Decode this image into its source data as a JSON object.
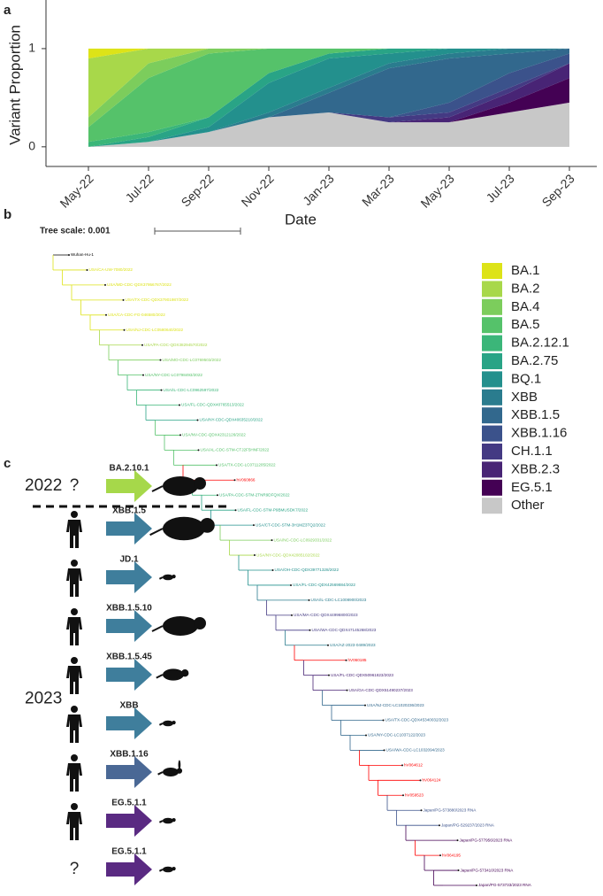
{
  "panel_labels": [
    "a",
    "b",
    "c"
  ],
  "chart_data": {
    "type": "area",
    "stacked": true,
    "y_label": "Variant Proportion",
    "x_label": "Date",
    "categories": [
      "May-22",
      "Jul-22",
      "Sep-22",
      "Nov-22",
      "Jan-23",
      "Mar-23",
      "May-23",
      "Jul-23",
      "Sep-23"
    ],
    "ylim": [
      -0.2,
      1.45
    ],
    "yticks": [
      0,
      1
    ],
    "series": [
      {
        "name": "BA.1",
        "color": "#dde318",
        "values": [
          0.1,
          0,
          0,
          0,
          0,
          0,
          0,
          0,
          0
        ]
      },
      {
        "name": "BA.2",
        "color": "#a8d84a",
        "values": [
          0.6,
          0.15,
          0,
          0,
          0,
          0,
          0,
          0,
          0
        ]
      },
      {
        "name": "BA.4",
        "color": "#7ccd5c",
        "values": [
          0.1,
          0.15,
          0.05,
          0,
          0,
          0,
          0,
          0,
          0
        ]
      },
      {
        "name": "BA.5",
        "color": "#55c26a",
        "values": [
          0.15,
          0.55,
          0.65,
          0.25,
          0.05,
          0,
          0,
          0,
          0
        ]
      },
      {
        "name": "BA.2.12.1",
        "color": "#3bb679",
        "values": [
          0.05,
          0.05,
          0,
          0,
          0,
          0,
          0,
          0,
          0
        ]
      },
      {
        "name": "BA.2.75",
        "color": "#29a486",
        "values": [
          0,
          0.05,
          0.1,
          0.1,
          0.05,
          0.05,
          0,
          0,
          0
        ]
      },
      {
        "name": "BQ.1",
        "color": "#23908d",
        "values": [
          0,
          0,
          0.05,
          0.3,
          0.3,
          0.1,
          0.05,
          0,
          0
        ]
      },
      {
        "name": "XBB",
        "color": "#2a7c8e",
        "values": [
          0,
          0,
          0,
          0.05,
          0.05,
          0.05,
          0.05,
          0.05,
          0
        ]
      },
      {
        "name": "XBB.1.5",
        "color": "#32688d",
        "values": [
          0,
          0,
          0,
          0,
          0.2,
          0.5,
          0.45,
          0.2,
          0.05
        ]
      },
      {
        "name": "XBB.1.16",
        "color": "#3b528b",
        "values": [
          0,
          0,
          0,
          0,
          0,
          0,
          0.1,
          0.15,
          0.1
        ]
      },
      {
        "name": "CH.1.1",
        "color": "#443a83",
        "values": [
          0,
          0,
          0,
          0,
          0,
          0.05,
          0.05,
          0.05,
          0
        ]
      },
      {
        "name": "XBB.2.3",
        "color": "#482475",
        "values": [
          0,
          0,
          0,
          0,
          0,
          0,
          0.05,
          0.1,
          0.15
        ]
      },
      {
        "name": "EG.5.1",
        "color": "#440154",
        "values": [
          0,
          0,
          0,
          0,
          0,
          0,
          0,
          0.1,
          0.25
        ]
      },
      {
        "name": "Other",
        "color": "#c8c8c8",
        "values": [
          0,
          0.05,
          0.15,
          0.3,
          0.35,
          0.25,
          0.25,
          0.35,
          0.45
        ]
      }
    ]
  },
  "tree": {
    "scale_label": "Tree scale: 0.001",
    "leaves": [
      {
        "label": "Wuhan-Hu-1",
        "color": "#000000"
      },
      {
        "label": "USA/CA-UW-7080/2022",
        "color": "#dde318"
      },
      {
        "label": "USA/MD-CDC-QDX37956787/2022",
        "color": "#dde318"
      },
      {
        "label": "USA/TX-CDC-QDX37901987/2022",
        "color": "#dde318"
      },
      {
        "label": "USA/CA-CDC-FG-046580/2022",
        "color": "#dde318"
      },
      {
        "label": "USA/NJ-CDC-LC0580640/2022",
        "color": "#dde318"
      },
      {
        "label": "USA/PA-CDC-QDX38294570/2022",
        "color": "#a8d84a"
      },
      {
        "label": "USA/MO-CDC-LC0769503/2022",
        "color": "#7ccd5c"
      },
      {
        "label": "USA/NY-CDC-LC0798493/2022",
        "color": "#55c26a"
      },
      {
        "label": "USA/IL-CDC-LC0962597/2022",
        "color": "#3bb679"
      },
      {
        "label": "USA/FL-CDC-QDX40765513/2022",
        "color": "#3bb679"
      },
      {
        "label": "USA/NY-CDC-QDX40635210/2022",
        "color": "#29a486"
      },
      {
        "label": "USA/NV-CDC-QDX42312126/2022",
        "color": "#55c26a"
      },
      {
        "label": "USA/AL-CDC-STM-CTJ2F5HNF/2022",
        "color": "#55c26a"
      },
      {
        "label": "USA/TX-CDC-LC0711205/2022",
        "color": "#55c26a"
      },
      {
        "label": "hV060866",
        "color": "#ff0000"
      },
      {
        "label": "USA/PA-CDC-STM-2TNR9DFQX/2022",
        "color": "#3bb679"
      },
      {
        "label": "USA/FL-CDC-STM-P9BMUSDK7/2022",
        "color": "#29a486"
      },
      {
        "label": "USA/CT-CDC-STM-3H1MZ3TQ2/2022",
        "color": "#23908d"
      },
      {
        "label": "USA/NC-CDC-LC0929331/2022",
        "color": "#7ccd5c"
      },
      {
        "label": "USA/NY-CDC-QDX42085102/2022",
        "color": "#a8d84a"
      },
      {
        "label": "USA/OH-CDC-QDX39771328/2022",
        "color": "#23908d"
      },
      {
        "label": "USA/FL-CDC-QDX42569884/2022",
        "color": "#23908d"
      },
      {
        "label": "USA/IL-CDC-LC1008900/2023",
        "color": "#2a7c8e"
      },
      {
        "label": "USA/MA-CDC-QDX44996800/2023",
        "color": "#443a83"
      },
      {
        "label": "USA/WA-CDC-QDX47145268/2023",
        "color": "#443a83"
      },
      {
        "label": "USA/AZ-2023-0489/2023",
        "color": "#2a7c8e"
      },
      {
        "label": "hV060185",
        "color": "#ff0000"
      },
      {
        "label": "USA/FL-CDC-QDX50961823/2023",
        "color": "#482475"
      },
      {
        "label": "USA/GA-CDC-QDX51490237/2023",
        "color": "#482475"
      },
      {
        "label": "USA/NJ-CDC-LC1020236/2023",
        "color": "#32688d"
      },
      {
        "label": "USA/TX-CDC-QDX45340032/2023",
        "color": "#32688d"
      },
      {
        "label": "USA/NY-CDC-LC1037122/2023",
        "color": "#32688d"
      },
      {
        "label": "USA/WA-CDC-LC1032094/2023",
        "color": "#32688d"
      },
      {
        "label": "hV064612",
        "color": "#ff0000"
      },
      {
        "label": "hV064124",
        "color": "#ff0000"
      },
      {
        "label": "hV059523",
        "color": "#ff0000"
      },
      {
        "label": "Japan/PG-573880/2023 RNA",
        "color": "#3b528b"
      },
      {
        "label": "Japan/PG-529237/2023 RNA",
        "color": "#3b528b"
      },
      {
        "label": "Japan/PG-577956/2023 RNA",
        "color": "#440154"
      },
      {
        "label": "hV064195",
        "color": "#ff0000"
      },
      {
        "label": "Japan/PG-573410/2023 RNA",
        "color": "#440154"
      },
      {
        "label": "Japan/PG-573733/2023 RNA",
        "color": "#440154"
      }
    ]
  },
  "transmissions": {
    "years": [
      "2022",
      "2023"
    ],
    "rows": [
      {
        "lineage": "BA.2.10.1",
        "color": "#a6d84a",
        "source": "?",
        "host": "armadillo",
        "year": 0
      },
      {
        "lineage": "XBB.1.5",
        "color": "#3f7e9c",
        "source_icon": "human",
        "host": "raccoon",
        "year": 1
      },
      {
        "lineage": "JD.1",
        "color": "#3f7e9c",
        "source_icon": "human",
        "host": "mouse",
        "year": 1
      },
      {
        "lineage": "XBB.1.5.10",
        "color": "#3f7e9c",
        "source_icon": "human",
        "host": "armadillo",
        "year": 1
      },
      {
        "lineage": "XBB.1.5.45",
        "color": "#3f7e9c",
        "source_icon": "human",
        "host": "beaver",
        "year": 1
      },
      {
        "lineage": "XBB",
        "color": "#3f7e9c",
        "source_icon": "human",
        "host": "mouse",
        "year": 1
      },
      {
        "lineage": "XBB.1.16",
        "color": "#4a6895",
        "source_icon": "human",
        "host": "rabbit",
        "year": 1
      },
      {
        "lineage": "EG.5.1.1",
        "color": "#5a2a82",
        "source_icon": "human",
        "host": "mouse",
        "year": 1
      },
      {
        "lineage": "EG.5.1.1",
        "color": "#5a2a82",
        "source": "?",
        "host": "mouse",
        "year": 1
      }
    ]
  }
}
